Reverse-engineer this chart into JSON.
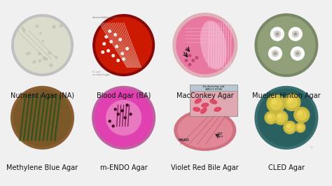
{
  "labels_row1": [
    "Nutrient Agar (NA)",
    "Blood Agar (BA)",
    "MacConkey Agar",
    "Mueller Hinton Agar"
  ],
  "labels_row2": [
    "Methylene Blue Agar",
    "m-ENDO Agar",
    "Violet Red Bile Agar",
    "CLED Agar"
  ],
  "bg_color": "#f0f0f0",
  "label_color": "#111111",
  "label_fontsize": 7.0,
  "cell_bgs": [
    "#8898a8",
    "#111111",
    "#e8e8e8",
    "#1a1a1a",
    "#7a5530",
    "#e8e0e8",
    "#f0ece8",
    "#c8c8c8"
  ],
  "figsize": [
    4.74,
    2.66
  ],
  "dpi": 100
}
